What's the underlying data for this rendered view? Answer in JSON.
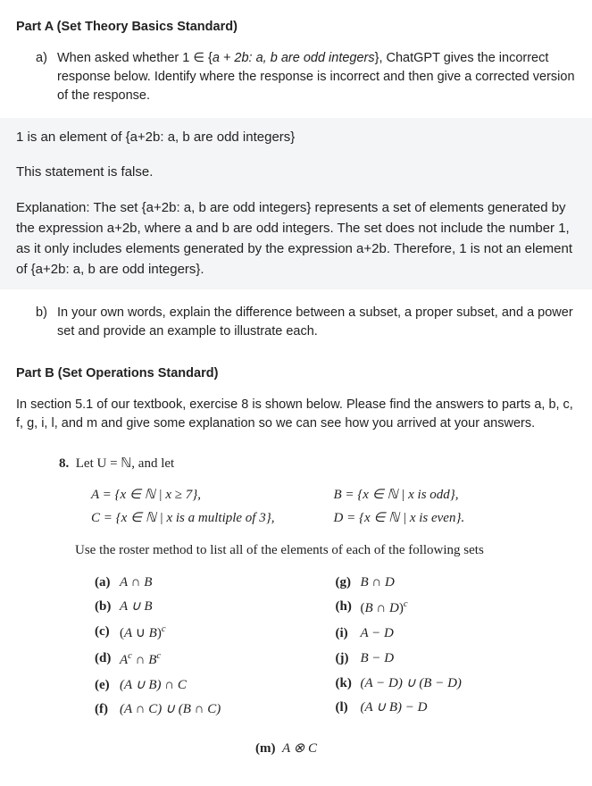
{
  "partA": {
    "header": "Part A (Set Theory Basics Standard)",
    "a_marker": "a)",
    "a_text_before": "When asked whether 1 ∈ {",
    "a_expr": "a + 2b:  a, b are odd integers",
    "a_text_after": "}, ChatGPT gives the incorrect response below. Identify where the response is incorrect and then give a corrected version of the response.",
    "quote_l1": "1 is an element of {a+2b: a, b are odd integers}",
    "quote_l2": "This statement is false.",
    "quote_l3": "Explanation: The set {a+2b: a, b are odd integers} represents a set of elements generated by the expression a+2b, where a and b are odd integers. The set does not include the number 1, as it only includes elements generated by the expression a+2b. Therefore, 1 is not an element of {a+2b: a, b are odd integers}.",
    "b_marker": "b)",
    "b_text": "In your own words, explain the difference between a subset, a proper subset, and a power set and provide an example to illustrate each."
  },
  "partB": {
    "header": "Part B (Set Operations Standard)",
    "intro": "In section 5.1 of our textbook, exercise 8 is shown below.  Please find the answers to parts a, b, c, f, g, i, l, and m and give some explanation so we can see how you arrived at your answers.",
    "ex_num": "8.",
    "ex_head": "Let U = ℕ, and let",
    "setA": "A = {x ∈ ℕ | x ≥ 7},",
    "setB": "B = {x ∈ ℕ | x is odd},",
    "setC": "C = {x ∈ ℕ | x is a multiple of 3},",
    "setD": "D = {x ∈ ℕ | x is even}.",
    "instr": "Use the roster method to list all of the elements of each of the following sets",
    "a_m": "(a)",
    "a_e": "A ∩ B",
    "b_m": "(b)",
    "b_e": "A ∪ B",
    "c_m": "(c)",
    "c_e_html": "(<i>A</i> ∪ <i>B</i>)<sup><i>c</i></sup>",
    "d_m": "(d)",
    "d_e_html": "<i>A</i><sup><i>c</i></sup> ∩ <i>B</i><sup><i>c</i></sup>",
    "e_m": "(e)",
    "e_e": "(A ∪ B) ∩ C",
    "f_m": "(f)",
    "f_e": "(A ∩ C) ∪ (B ∩ C)",
    "g_m": "(g)",
    "g_e": "B ∩ D",
    "h_m": "(h)",
    "h_e_html": "(<i>B</i> ∩ <i>D</i>)<sup><i>c</i></sup>",
    "i_m": "(i)",
    "i_e": "A − D",
    "j_m": "(j)",
    "j_e": "B − D",
    "k_m": "(k)",
    "k_e": "(A − D) ∪ (B − D)",
    "l_m": "(l)",
    "l_e": "(A ∪ B) − D",
    "m_m": "(m)",
    "m_e": "A ⊗ C"
  }
}
